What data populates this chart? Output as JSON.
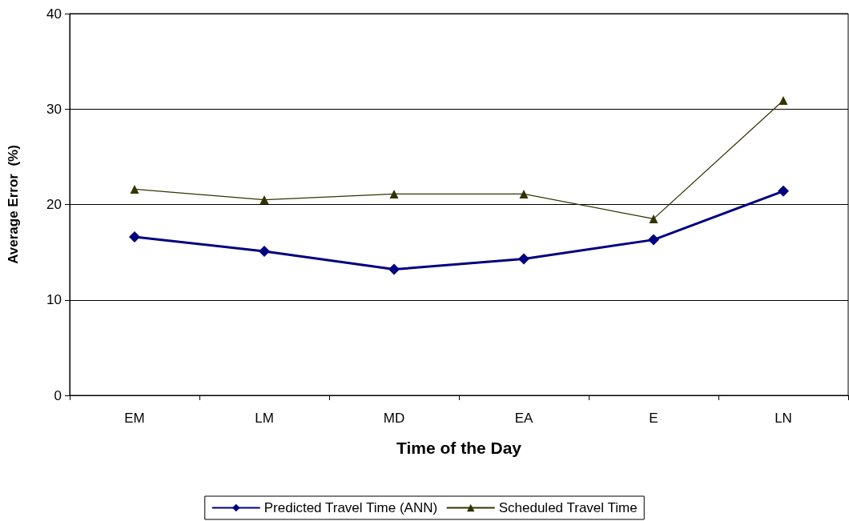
{
  "chart_data": {
    "type": "line",
    "xlabel": "Time of the Day",
    "ylabel": "Average Error  (%)",
    "categories": [
      "EM",
      "LM",
      "MD",
      "EA",
      "E",
      "LN"
    ],
    "series": [
      {
        "name": "Predicted Travel Time (ANN)",
        "color": "#000080",
        "marker": "diamond",
        "values": [
          16.6,
          15.1,
          13.2,
          14.3,
          16.3,
          21.4
        ]
      },
      {
        "name": "Scheduled Travel Time",
        "color": "#333300",
        "marker": "triangle",
        "values": [
          21.6,
          20.5,
          21.1,
          21.1,
          18.5,
          30.9
        ]
      }
    ],
    "ylim": [
      0,
      40
    ],
    "yticks": [
      0,
      10,
      20,
      30,
      40
    ],
    "grid": "y",
    "legend": "bottom",
    "line_style": "solid"
  }
}
